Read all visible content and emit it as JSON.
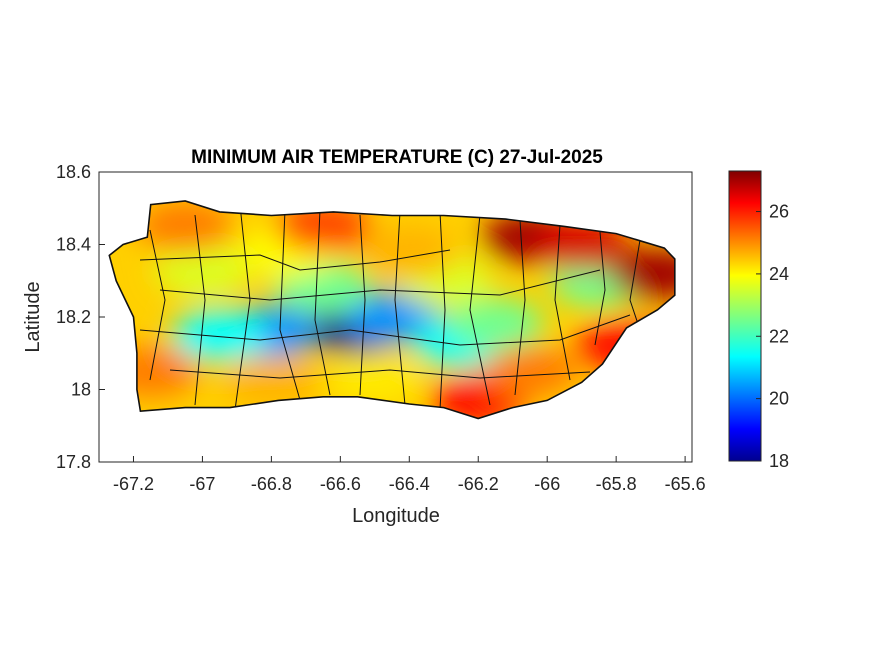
{
  "chart_data": {
    "type": "heatmap",
    "title": "MINIMUM AIR TEMPERATURE (C) 27-Jul-2025",
    "xlabel": "Longitude",
    "ylabel": "Latitude",
    "xlim": [
      -67.3,
      -65.58
    ],
    "ylim": [
      17.8,
      18.6
    ],
    "xticks": [
      -67.2,
      -67,
      -66.8,
      -66.6,
      -66.4,
      -66.2,
      -66,
      -65.8,
      -65.6
    ],
    "xtick_labels": [
      "-67.2",
      "-67",
      "-66.8",
      "-66.6",
      "-66.4",
      "-66.2",
      "-66",
      "-65.8",
      "-65.6"
    ],
    "yticks": [
      17.8,
      18,
      18.2,
      18.4,
      18.6
    ],
    "ytick_labels": [
      "17.8",
      "18",
      "18.2",
      "18.4",
      "18.6"
    ],
    "colorbar": {
      "colormap": "jet",
      "range": [
        18,
        27.3
      ],
      "ticks": [
        18,
        20,
        22,
        24,
        26
      ],
      "tick_labels": [
        "18",
        "20",
        "22",
        "24",
        "26"
      ]
    },
    "grid": false,
    "region_outline": [
      [
        -67.27,
        18.37
      ],
      [
        -67.23,
        18.4
      ],
      [
        -67.16,
        18.42
      ],
      [
        -67.15,
        18.51
      ],
      [
        -67.05,
        18.52
      ],
      [
        -66.95,
        18.49
      ],
      [
        -66.8,
        18.48
      ],
      [
        -66.62,
        18.49
      ],
      [
        -66.45,
        18.48
      ],
      [
        -66.3,
        18.48
      ],
      [
        -66.12,
        18.47
      ],
      [
        -65.95,
        18.45
      ],
      [
        -65.8,
        18.43
      ],
      [
        -65.66,
        18.39
      ],
      [
        -65.63,
        18.36
      ],
      [
        -65.63,
        18.26
      ],
      [
        -65.68,
        18.22
      ],
      [
        -65.77,
        18.17
      ],
      [
        -65.84,
        18.07
      ],
      [
        -65.9,
        18.02
      ],
      [
        -66.0,
        17.97
      ],
      [
        -66.1,
        17.95
      ],
      [
        -66.2,
        17.92
      ],
      [
        -66.3,
        17.95
      ],
      [
        -66.4,
        17.96
      ],
      [
        -66.55,
        17.98
      ],
      [
        -66.65,
        17.98
      ],
      [
        -66.78,
        17.97
      ],
      [
        -66.92,
        17.95
      ],
      [
        -67.05,
        17.95
      ],
      [
        -67.18,
        17.94
      ],
      [
        -67.19,
        18.0
      ],
      [
        -67.19,
        18.1
      ],
      [
        -67.2,
        18.2
      ],
      [
        -67.25,
        18.3
      ]
    ],
    "field_samples": [
      {
        "lon": -66.55,
        "lat": 18.17,
        "value": 18
      },
      {
        "lon": -66.45,
        "lat": 18.2,
        "value": 20.5
      },
      {
        "lon": -66.8,
        "lat": 18.16,
        "value": 20.5
      },
      {
        "lon": -66.95,
        "lat": 18.15,
        "value": 21.5
      },
      {
        "lon": -66.25,
        "lat": 18.13,
        "value": 21.5
      },
      {
        "lon": -66.15,
        "lat": 18.18,
        "value": 22.5
      },
      {
        "lon": -66.65,
        "lat": 18.28,
        "value": 22.5
      },
      {
        "lon": -66.3,
        "lat": 18.3,
        "value": 23.5
      },
      {
        "lon": -65.85,
        "lat": 18.3,
        "value": 22.5
      },
      {
        "lon": -67.0,
        "lat": 18.33,
        "value": 23.5
      },
      {
        "lon": -66.75,
        "lat": 18.38,
        "value": 23.8
      },
      {
        "lon": -66.4,
        "lat": 18.38,
        "value": 24.5
      },
      {
        "lon": -67.05,
        "lat": 18.45,
        "value": 25
      },
      {
        "lon": -66.65,
        "lat": 18.45,
        "value": 25.5
      },
      {
        "lon": -67.15,
        "lat": 18.05,
        "value": 25
      },
      {
        "lon": -66.8,
        "lat": 18.02,
        "value": 24.5
      },
      {
        "lon": -66.5,
        "lat": 18.03,
        "value": 24
      },
      {
        "lon": -66.2,
        "lat": 17.97,
        "value": 26
      },
      {
        "lon": -66.05,
        "lat": 18.42,
        "value": 27
      },
      {
        "lon": -65.9,
        "lat": 18.4,
        "value": 26.5
      },
      {
        "lon": -65.68,
        "lat": 18.32,
        "value": 27
      },
      {
        "lon": -65.78,
        "lat": 18.12,
        "value": 26
      },
      {
        "lon": -66.05,
        "lat": 18.05,
        "value": 25
      }
    ]
  }
}
